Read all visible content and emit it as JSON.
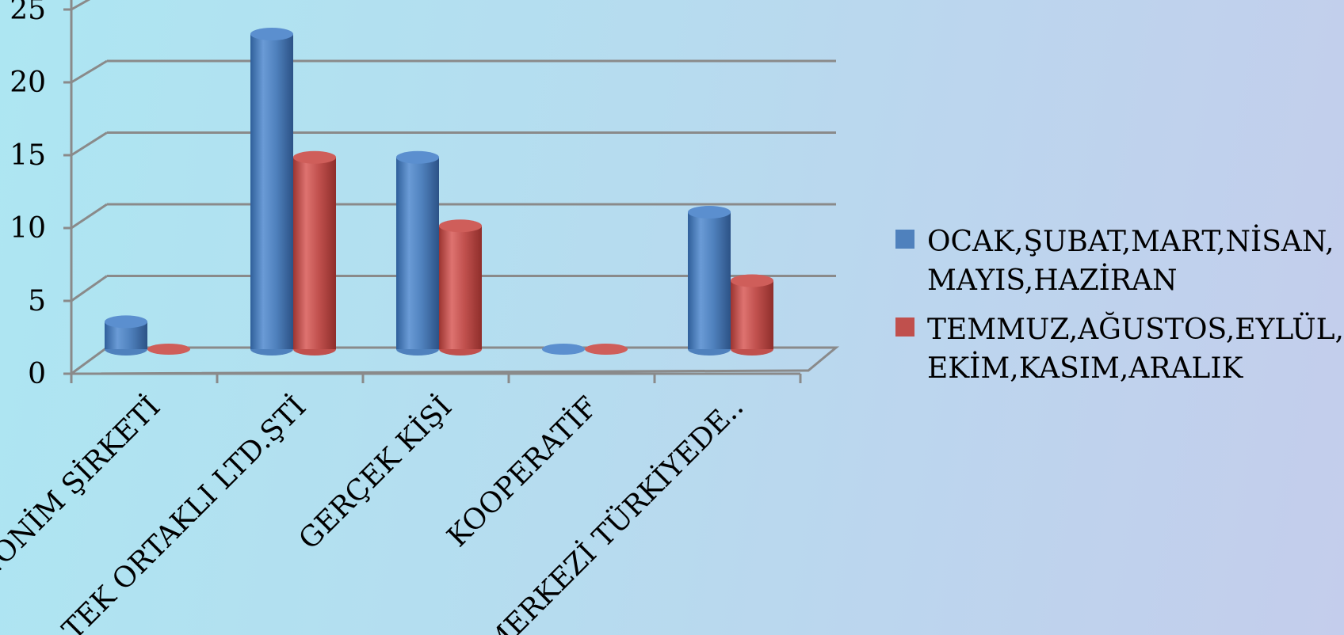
{
  "chart_data": {
    "type": "bar",
    "style": "3d-cylinder",
    "categories": [
      "ANONİM ŞİRKETİ",
      "TEK ORTAKLI LTD.ŞTİ",
      "GERÇEK KİŞİ",
      "KOOPERATİF",
      "MERKEZİ TÜRKİYEDE.."
    ],
    "series": [
      {
        "name": "OCAK,ŞUBAT,MART,NİSAN,\nMAYIS,HAZİRAN",
        "color": "#4f81bd",
        "values": [
          2,
          23,
          14,
          0,
          10
        ]
      },
      {
        "name": "TEMMUZ,AĞUSTOS,EYLÜL,\nEKİM,KASIM,ARALIK",
        "color": "#c0504d",
        "values": [
          0,
          14,
          9,
          0,
          5
        ]
      }
    ],
    "yticks": [
      "0",
      "5",
      "10",
      "15",
      "20",
      "25"
    ],
    "ylim": [
      0,
      25
    ],
    "grid": true,
    "legend_position": "right"
  }
}
